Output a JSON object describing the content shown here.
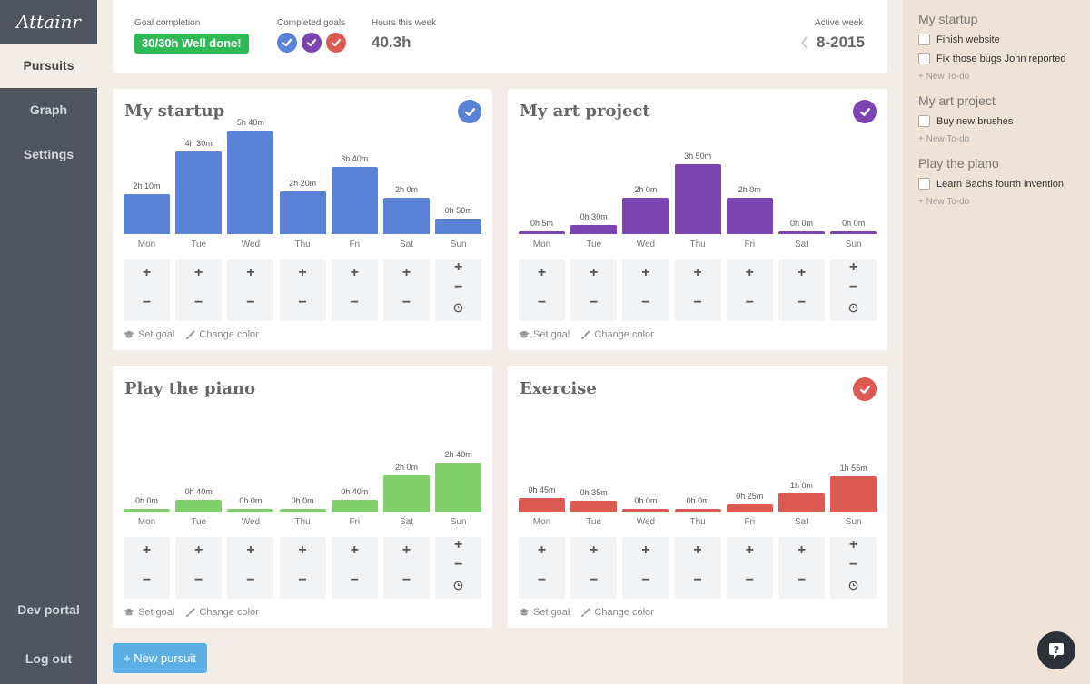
{
  "app": {
    "logo": "Attainr"
  },
  "sidebar": {
    "items": [
      {
        "label": "Pursuits",
        "active": true
      },
      {
        "label": "Graph",
        "active": false
      },
      {
        "label": "Settings",
        "active": false
      }
    ],
    "dev_portal": "Dev portal",
    "logout": "Log out"
  },
  "stats": {
    "goal_label": "Goal completion",
    "goal_value": "30/30h Well done!",
    "completed_label": "Completed goals",
    "completed_colors": [
      "#5a82d6",
      "#7b44b0",
      "#dc5a51"
    ],
    "hours_label": "Hours this week",
    "hours_value": "40.3h",
    "week_label": "Active week",
    "week_value": "8-2015"
  },
  "days": [
    "Mon",
    "Tue",
    "Wed",
    "Thu",
    "Fri",
    "Sat",
    "Sun"
  ],
  "footer": {
    "set_goal": "Set goal",
    "change_color": "Change color"
  },
  "controls": {
    "plus": "+",
    "minus": "−"
  },
  "pursuits": [
    {
      "title": "My startup",
      "color": "#5a82d6",
      "completed": true,
      "labels": [
        "2h 10m",
        "4h 30m",
        "5h 40m",
        "2h 20m",
        "3h 40m",
        "2h 0m",
        "0h 50m"
      ],
      "minutes": [
        130,
        270,
        340,
        140,
        220,
        120,
        50
      ]
    },
    {
      "title": "My art project",
      "color": "#7b44b0",
      "completed": true,
      "labels": [
        "0h 5m",
        "0h 30m",
        "2h 0m",
        "3h 50m",
        "2h 0m",
        "0h 0m",
        "0h 0m"
      ],
      "minutes": [
        5,
        30,
        120,
        230,
        120,
        0,
        0
      ]
    },
    {
      "title": "Play the piano",
      "color": "#7fcf6a",
      "completed": false,
      "labels": [
        "0h 0m",
        "0h 40m",
        "0h 0m",
        "0h 0m",
        "0h 40m",
        "2h 0m",
        "2h 40m"
      ],
      "minutes": [
        0,
        40,
        0,
        0,
        40,
        120,
        160
      ]
    },
    {
      "title": "Exercise",
      "color": "#dc5a51",
      "completed": true,
      "labels": [
        "0h 45m",
        "0h 35m",
        "0h 0m",
        "0h 0m",
        "0h 25m",
        "1h 0m",
        "1h 55m"
      ],
      "minutes": [
        45,
        35,
        0,
        0,
        25,
        60,
        115
      ]
    }
  ],
  "new_pursuit": "+ New pursuit",
  "todos": {
    "sections": [
      {
        "title": "My startup",
        "items": [
          "Finish website",
          "Fix those bugs John reported"
        ]
      },
      {
        "title": "My art project",
        "items": [
          "Buy new brushes"
        ]
      },
      {
        "title": "Play the piano",
        "items": [
          "Learn Bachs fourth invention"
        ]
      }
    ],
    "new_label": "+ New To-do"
  },
  "help_icon": "question-icon"
}
